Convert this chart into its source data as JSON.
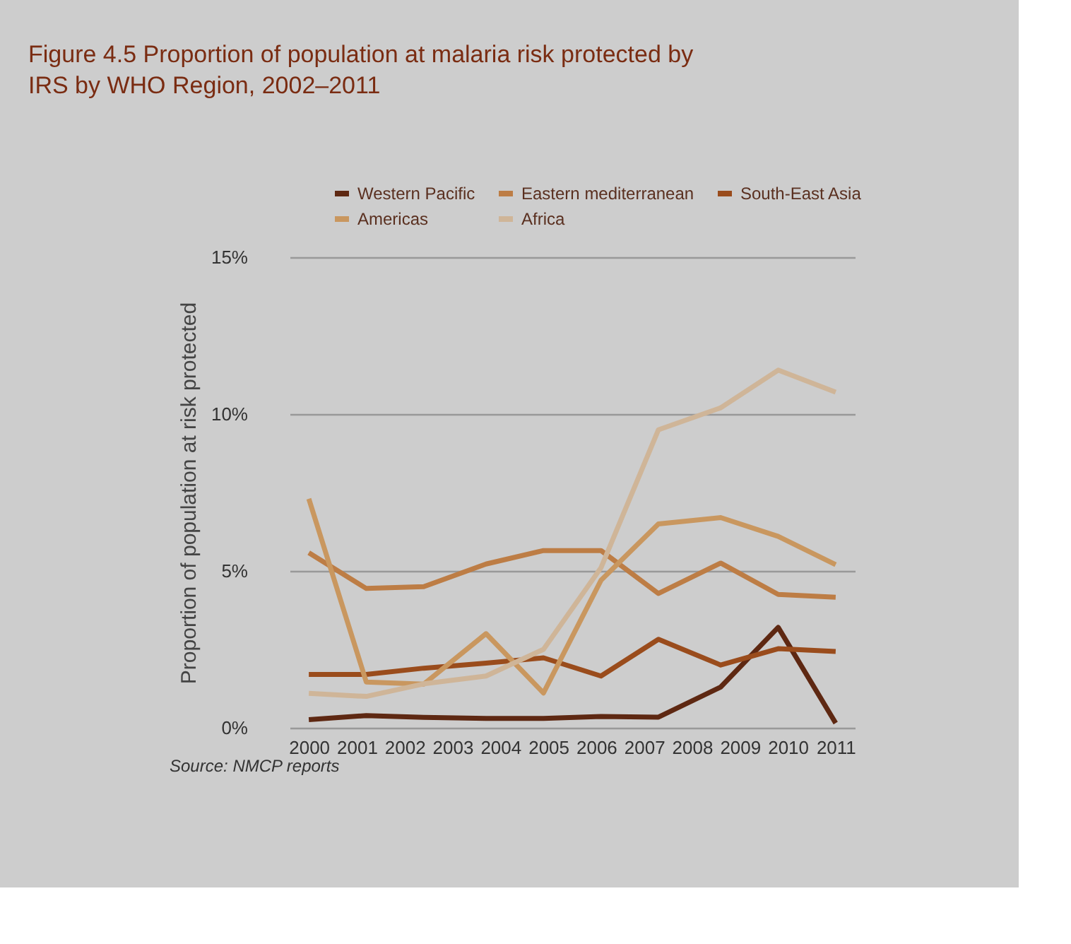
{
  "chart_data": {
    "type": "line",
    "title": "Figure 4.5 Proportion of population at malaria risk protected by\nIRS by WHO Region, 2002–2011",
    "ylabel": "Proportion of population at risk protected",
    "annotations": [
      "Source: NMCP reports"
    ],
    "x": [
      2000,
      2001.2,
      2002.4,
      2003.7,
      2004.9,
      2006.1,
      2007.3,
      2008.6,
      2009.8,
      2011
    ],
    "series": [
      {
        "name": "Western Pacific",
        "color": "#5e2812",
        "values": [
          0.26,
          0.39,
          0.33,
          0.3,
          0.3,
          0.36,
          0.34,
          1.3,
          3.2,
          0.15
        ]
      },
      {
        "name": "Eastern mediterranean",
        "color": "#bd7d45",
        "values": [
          5.58,
          4.44,
          4.5,
          5.22,
          5.65,
          5.65,
          4.28,
          5.25,
          4.25,
          4.16
        ]
      },
      {
        "name": "South-East Asia",
        "color": "#9a4c1c",
        "values": [
          1.7,
          1.7,
          1.9,
          2.06,
          2.23,
          1.65,
          2.82,
          2.0,
          2.52,
          2.43
        ]
      },
      {
        "name": "Americas",
        "color": "#c9975f",
        "values": [
          7.3,
          1.46,
          1.39,
          3.0,
          1.11,
          4.7,
          6.5,
          6.7,
          6.1,
          5.2
        ]
      },
      {
        "name": "Africa",
        "color": "#cfb598",
        "values": [
          1.1,
          1.0,
          1.4,
          1.65,
          2.5,
          5.1,
          9.5,
          10.2,
          11.4,
          10.7
        ]
      }
    ],
    "xlim": [
      1999.6,
      2011.4
    ],
    "xticks": [
      2000,
      2001,
      2002,
      2003,
      2004,
      2005,
      2006,
      2007,
      2008,
      2009,
      2010,
      2011
    ],
    "ylim": [
      0,
      15
    ],
    "yticks": [
      {
        "value": 0,
        "label": "0%"
      },
      {
        "value": 5,
        "label": "5%"
      },
      {
        "value": 10,
        "label": "10%"
      },
      {
        "value": 15,
        "label": "15%"
      }
    ],
    "grid": "y",
    "legend": "top right",
    "marker": "none",
    "line_style": "solid"
  }
}
